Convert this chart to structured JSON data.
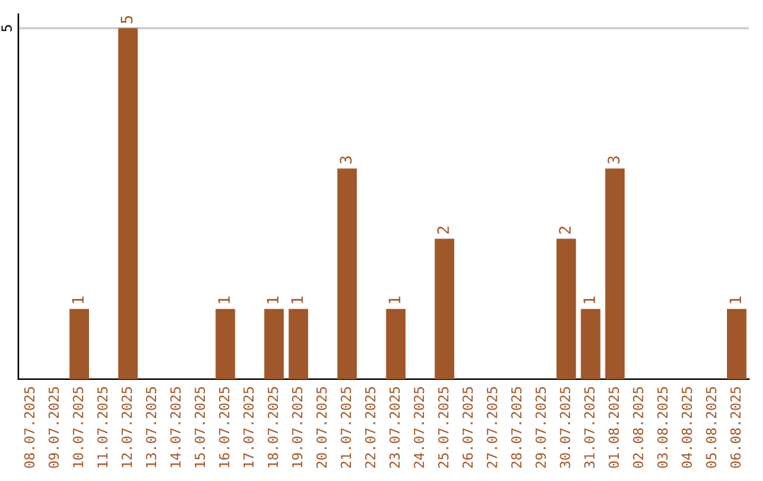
{
  "chart_data": {
    "type": "bar",
    "categories": [
      "08.07.2025",
      "09.07.2025",
      "10.07.2025",
      "11.07.2025",
      "12.07.2025",
      "13.07.2025",
      "14.07.2025",
      "15.07.2025",
      "16.07.2025",
      "17.07.2025",
      "18.07.2025",
      "19.07.2025",
      "20.07.2025",
      "21.07.2025",
      "22.07.2025",
      "23.07.2025",
      "24.07.2025",
      "25.07.2025",
      "26.07.2025",
      "27.07.2025",
      "28.07.2025",
      "29.07.2025",
      "30.07.2025",
      "31.07.2025",
      "01.08.2025",
      "02.08.2025",
      "03.08.2025",
      "04.08.2025",
      "05.08.2025",
      "06.08.2025"
    ],
    "values": [
      0,
      0,
      1,
      0,
      5,
      0,
      0,
      0,
      1,
      0,
      1,
      1,
      0,
      3,
      0,
      1,
      0,
      2,
      0,
      0,
      0,
      0,
      2,
      1,
      3,
      0,
      0,
      0,
      0,
      1
    ],
    "value_labels": [
      null,
      null,
      "1",
      null,
      "5",
      null,
      null,
      null,
      "1",
      null,
      "1",
      "1",
      null,
      "3",
      null,
      "1",
      null,
      "2",
      null,
      null,
      null,
      null,
      "2",
      "1",
      "3",
      null,
      null,
      null,
      null,
      "1"
    ],
    "color": "#a0572a",
    "ylim": [
      0,
      5.2
    ],
    "yticks": [
      5
    ],
    "grid": "y"
  }
}
